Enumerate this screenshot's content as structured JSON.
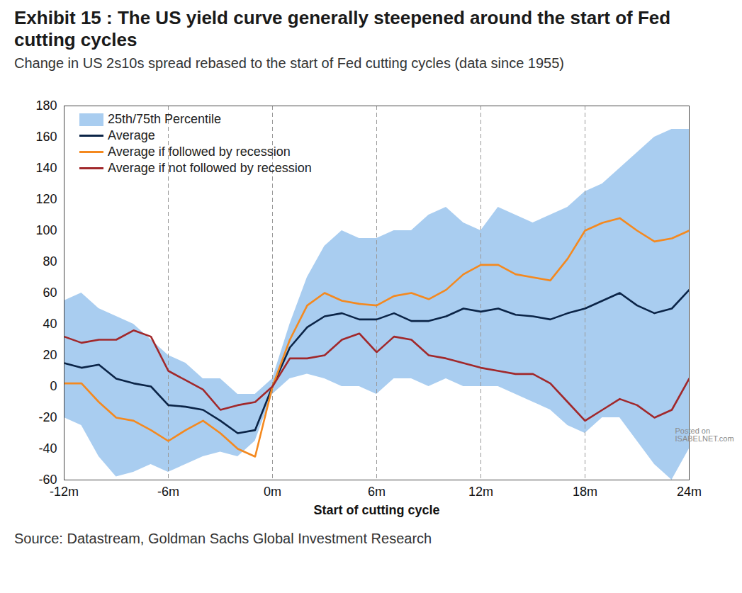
{
  "chart_data": {
    "type": "line",
    "title": "Exhibit 15 : The US yield curve generally steepened around the start of Fed cutting cycles",
    "subtitle": "Change in US 2s10s spread rebased to the start of Fed cutting cycles (data since 1955)",
    "caption": "Source: Datastream, Goldman Sachs Global Investment Research",
    "annotations": [
      "Posted on",
      "ISABELNET.com"
    ],
    "x_label": "Start of cutting cycle",
    "x": [
      -12,
      -11,
      -10,
      -9,
      -8,
      -7,
      -6,
      -5,
      -4,
      -3,
      -2,
      -1,
      0,
      1,
      2,
      3,
      4,
      5,
      6,
      7,
      8,
      9,
      10,
      11,
      12,
      13,
      14,
      15,
      16,
      17,
      18,
      19,
      20,
      21,
      22,
      23,
      24
    ],
    "series": [
      {
        "name": "25th/75th Percentile",
        "type": "area",
        "color": "#a9cdf0",
        "low": [
          -20,
          -25,
          -45,
          -58,
          -55,
          -50,
          -55,
          -50,
          -45,
          -42,
          -45,
          -35,
          -5,
          5,
          8,
          5,
          0,
          0,
          -5,
          5,
          5,
          0,
          5,
          0,
          0,
          0,
          -5,
          -10,
          -15,
          -25,
          -30,
          -20,
          -20,
          -35,
          -50,
          -60,
          -40
        ],
        "high": [
          55,
          60,
          50,
          45,
          40,
          30,
          20,
          15,
          5,
          5,
          -5,
          -5,
          5,
          40,
          70,
          90,
          100,
          95,
          95,
          100,
          100,
          110,
          115,
          105,
          100,
          115,
          110,
          105,
          110,
          115,
          125,
          130,
          140,
          150,
          160,
          165,
          165
        ]
      },
      {
        "name": "Average",
        "type": "line",
        "color": "#0b2447",
        "values": [
          15,
          12,
          14,
          5,
          2,
          0,
          -12,
          -13,
          -15,
          -22,
          -30,
          -28,
          0,
          25,
          38,
          45,
          47,
          43,
          43,
          47,
          42,
          42,
          45,
          50,
          48,
          50,
          46,
          45,
          43,
          47,
          50,
          55,
          60,
          52,
          47,
          50,
          62
        ]
      },
      {
        "name": "Average if followed by recession",
        "type": "line",
        "color": "#f4891f",
        "values": [
          2,
          2,
          -10,
          -20,
          -22,
          -28,
          -35,
          -28,
          -22,
          -30,
          -40,
          -45,
          0,
          30,
          52,
          60,
          55,
          53,
          52,
          58,
          60,
          56,
          62,
          72,
          78,
          78,
          72,
          70,
          68,
          82,
          100,
          105,
          108,
          100,
          93,
          95,
          100
        ]
      },
      {
        "name": "Average if not followed by recession",
        "type": "line",
        "color": "#a1282b",
        "values": [
          32,
          28,
          30,
          30,
          36,
          32,
          10,
          4,
          -2,
          -15,
          -12,
          -10,
          0,
          18,
          18,
          20,
          30,
          34,
          22,
          32,
          30,
          20,
          18,
          15,
          12,
          10,
          8,
          8,
          2,
          -10,
          -22,
          -15,
          -8,
          -12,
          -20,
          -15,
          5
        ]
      }
    ],
    "xlim": [
      -12,
      24
    ],
    "xticks": [
      {
        "value": -12,
        "label": "-12m"
      },
      {
        "value": -6,
        "label": "-6m"
      },
      {
        "value": 0,
        "label": "0m"
      },
      {
        "value": 6,
        "label": "6m"
      },
      {
        "value": 12,
        "label": "12m"
      },
      {
        "value": 18,
        "label": "18m"
      },
      {
        "value": 24,
        "label": "24m"
      }
    ],
    "ylim": [
      -60,
      180
    ],
    "yticks": [
      -60,
      -40,
      -20,
      0,
      20,
      40,
      60,
      80,
      100,
      120,
      140,
      160,
      180
    ],
    "grid": "x",
    "legend": "top-left"
  }
}
